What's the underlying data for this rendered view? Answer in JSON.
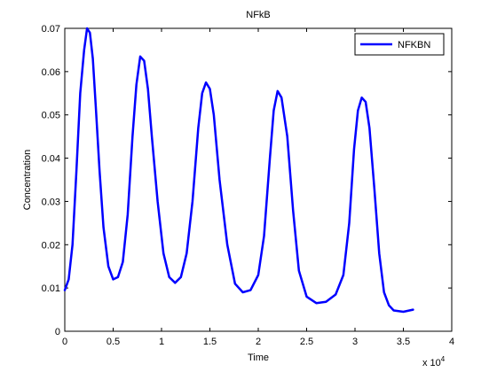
{
  "chart_data": {
    "type": "line",
    "title": "NFkB",
    "xlabel": "Time",
    "ylabel": "Concentration",
    "x_exponent_label": "x 10",
    "x_exponent_power": "4",
    "x_scale": 10000,
    "xlim": [
      0,
      40000
    ],
    "ylim": [
      0,
      0.07
    ],
    "x_ticks": [
      0,
      5000,
      10000,
      15000,
      20000,
      25000,
      30000,
      35000,
      40000
    ],
    "x_tick_labels": [
      "0",
      "0.5",
      "1",
      "1.5",
      "2",
      "2.5",
      "3",
      "3.5",
      "4"
    ],
    "y_ticks": [
      0,
      0.01,
      0.02,
      0.03,
      0.04,
      0.05,
      0.06,
      0.07
    ],
    "y_tick_labels": [
      "0",
      "0.01",
      "0.02",
      "0.03",
      "0.04",
      "0.05",
      "0.06",
      "0.07"
    ],
    "grid": false,
    "legend_position": "top-right",
    "series": [
      {
        "name": "NFKBN",
        "color": "#0000ff",
        "x": [
          0,
          400,
          800,
          1200,
          1600,
          2000,
          2300,
          2600,
          2900,
          3200,
          3600,
          4000,
          4500,
          5000,
          5500,
          6000,
          6500,
          7000,
          7400,
          7800,
          8200,
          8600,
          9000,
          9600,
          10200,
          10800,
          11400,
          12000,
          12600,
          13200,
          13800,
          14200,
          14600,
          15000,
          15400,
          16000,
          16800,
          17600,
          18400,
          19200,
          20000,
          20600,
          21200,
          21600,
          22000,
          22400,
          23000,
          23600,
          24200,
          25000,
          26000,
          27000,
          28000,
          28800,
          29400,
          29900,
          30300,
          30700,
          31100,
          31500,
          32000,
          32500,
          33000,
          33500,
          34000,
          35000,
          36000
        ],
        "y": [
          0.0095,
          0.012,
          0.02,
          0.037,
          0.055,
          0.065,
          0.07,
          0.069,
          0.063,
          0.052,
          0.037,
          0.024,
          0.015,
          0.012,
          0.0125,
          0.016,
          0.027,
          0.045,
          0.057,
          0.0635,
          0.0625,
          0.056,
          0.045,
          0.03,
          0.018,
          0.0125,
          0.0112,
          0.0125,
          0.018,
          0.03,
          0.047,
          0.055,
          0.0575,
          0.056,
          0.05,
          0.035,
          0.02,
          0.011,
          0.009,
          0.0095,
          0.013,
          0.022,
          0.04,
          0.051,
          0.0555,
          0.054,
          0.045,
          0.028,
          0.014,
          0.008,
          0.0065,
          0.0068,
          0.0085,
          0.013,
          0.025,
          0.042,
          0.051,
          0.054,
          0.053,
          0.047,
          0.033,
          0.018,
          0.009,
          0.006,
          0.0048,
          0.0045,
          0.005
        ]
      }
    ]
  }
}
